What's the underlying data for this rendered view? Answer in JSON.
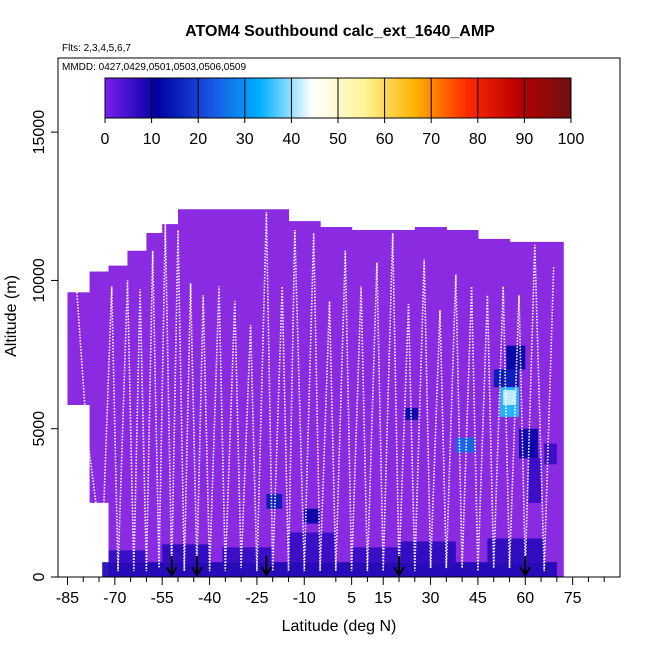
{
  "colors": {
    "background": "#8a2be2",
    "frame": "#000000",
    "flight_track": "#ffffff",
    "low_level": "#1010b0",
    "mid_level": "#2a2ad0",
    "hotspot": "#3aa8ff",
    "hotspot_light": "#8fd0ff"
  },
  "chart_data": {
    "type": "heatmap",
    "title": "ATOM4 Southbound calc_ext_1640_AMP",
    "subtitle_flights": "Flts: 2,3,4,5,6,7",
    "subtitle_dates": "MMDD: 0427,0429,0501,0503,0506,0509",
    "xlabel": "Latitude (deg N)",
    "ylabel": "Altitude (m)",
    "xlim": [
      -88,
      90
    ],
    "ylim": [
      0,
      17500
    ],
    "x_ticks": [
      -85,
      -70,
      -55,
      -40,
      -25,
      -10,
      5,
      15,
      30,
      45,
      60,
      75
    ],
    "x_minor_ticks": [
      -80,
      -75,
      -65,
      -60,
      -50,
      -45,
      -35,
      -30,
      -20,
      -15,
      0,
      10,
      20,
      25,
      35,
      40,
      50,
      55,
      65,
      70,
      80,
      85
    ],
    "y_ticks": [
      0,
      5000,
      10000,
      15000
    ],
    "colorbar": {
      "min": 0,
      "max": 100,
      "ticks": [
        0,
        10,
        20,
        30,
        40,
        50,
        60,
        70,
        80,
        90,
        100
      ],
      "stops": [
        "#7a1ff0",
        "#0000a0",
        "#1a4fe0",
        "#00b0ff",
        "#ffffff",
        "#fff59a",
        "#ffb000",
        "#ff2a00",
        "#b80000",
        "#6e1010"
      ]
    },
    "column_tops": [
      {
        "x0": -85,
        "x1": -78,
        "top": 9600
      },
      {
        "x0": -78,
        "x1": -72,
        "top": 10300
      },
      {
        "x0": -72,
        "x1": -66,
        "top": 10500
      },
      {
        "x0": -66,
        "x1": -60,
        "top": 11000
      },
      {
        "x0": -60,
        "x1": -55,
        "top": 11600
      },
      {
        "x0": -55,
        "x1": -50,
        "top": 11900
      },
      {
        "x0": -50,
        "x1": -44,
        "top": 12400
      },
      {
        "x0": -44,
        "x1": -35,
        "top": 12400
      },
      {
        "x0": -35,
        "x1": -25,
        "top": 12400
      },
      {
        "x0": -25,
        "x1": -15,
        "top": 12400
      },
      {
        "x0": -15,
        "x1": -5,
        "top": 12000
      },
      {
        "x0": -5,
        "x1": 5,
        "top": 11800
      },
      {
        "x0": 5,
        "x1": 15,
        "top": 11700
      },
      {
        "x0": 15,
        "x1": 25,
        "top": 11700
      },
      {
        "x0": 25,
        "x1": 35,
        "top": 11800
      },
      {
        "x0": 35,
        "x1": 45,
        "top": 11700
      },
      {
        "x0": 45,
        "x1": 55,
        "top": 11400
      },
      {
        "x0": 55,
        "x1": 65,
        "top": 11300
      },
      {
        "x0": 65,
        "x1": 72,
        "top": 11300
      }
    ],
    "column_bottoms": [
      {
        "x0": -85,
        "x1": -82,
        "bottom": 5800
      },
      {
        "x0": -82,
        "x1": -78,
        "bottom": 4500
      },
      {
        "x0": -78,
        "x1": -75,
        "bottom": 2500
      },
      {
        "x0": -75,
        "x1": 72,
        "bottom": 0
      }
    ],
    "cells": [
      {
        "x0": -74,
        "x1": 70,
        "y0": 0,
        "y1": 500,
        "value": 8
      },
      {
        "x0": -72,
        "x1": -60,
        "y0": 500,
        "y1": 900,
        "value": 6
      },
      {
        "x0": -55,
        "x1": -40,
        "y0": 500,
        "y1": 1100,
        "value": 7
      },
      {
        "x0": -36,
        "x1": -20,
        "y0": 500,
        "y1": 1000,
        "value": 6
      },
      {
        "x0": -15,
        "x1": 0,
        "y0": 500,
        "y1": 1500,
        "value": 6
      },
      {
        "x0": 5,
        "x1": 20,
        "y0": 500,
        "y1": 1000,
        "value": 6
      },
      {
        "x0": 20,
        "x1": 38,
        "y0": 500,
        "y1": 1200,
        "value": 7
      },
      {
        "x0": 48,
        "x1": 66,
        "y0": 500,
        "y1": 1300,
        "value": 7
      },
      {
        "x0": -22,
        "x1": -17,
        "y0": 2300,
        "y1": 2800,
        "value": 15
      },
      {
        "x0": -10,
        "x1": -5,
        "y0": 1800,
        "y1": 2300,
        "value": 10
      },
      {
        "x0": 22,
        "x1": 26,
        "y0": 5300,
        "y1": 5700,
        "value": 10
      },
      {
        "x0": 38,
        "x1": 44,
        "y0": 4200,
        "y1": 4700,
        "value": 25
      },
      {
        "x0": 50,
        "x1": 58,
        "y0": 6400,
        "y1": 7000,
        "value": 15
      },
      {
        "x0": 52,
        "x1": 58,
        "y0": 5400,
        "y1": 6400,
        "value": 35
      },
      {
        "x0": 53,
        "x1": 57,
        "y0": 5800,
        "y1": 6300,
        "value": 42
      },
      {
        "x0": 54,
        "x1": 60,
        "y0": 7000,
        "y1": 7800,
        "value": 12
      },
      {
        "x0": 58,
        "x1": 64,
        "y0": 4000,
        "y1": 5000,
        "value": 10
      },
      {
        "x0": 61,
        "x1": 65,
        "y0": 2500,
        "y1": 4000,
        "value": 6
      },
      {
        "x0": 66,
        "x1": 70,
        "y0": 3800,
        "y1": 4500,
        "value": 6
      }
    ],
    "flight_track": [
      [
        -82,
        9600
      ],
      [
        -79,
        5000
      ],
      [
        -76,
        2500
      ],
      [
        -74,
        900
      ],
      [
        -71,
        9800
      ],
      [
        -69,
        200
      ],
      [
        -66,
        10000
      ],
      [
        -64,
        200
      ],
      [
        -62,
        9700
      ],
      [
        -60,
        200
      ],
      [
        -58,
        11000
      ],
      [
        -56,
        300
      ],
      [
        -54,
        11900
      ],
      [
        -52,
        200
      ],
      [
        -50,
        11700
      ],
      [
        -48,
        200
      ],
      [
        -46,
        9900
      ],
      [
        -44,
        300
      ],
      [
        -42,
        9500
      ],
      [
        -40,
        200
      ],
      [
        -37,
        9800
      ],
      [
        -35,
        200
      ],
      [
        -32,
        9300
      ],
      [
        -30,
        300
      ],
      [
        -27,
        8500
      ],
      [
        -25,
        200
      ],
      [
        -22,
        12300
      ],
      [
        -20,
        200
      ],
      [
        -17,
        9800
      ],
      [
        -15,
        200
      ],
      [
        -13,
        11700
      ],
      [
        -10,
        200
      ],
      [
        -7,
        11600
      ],
      [
        -5,
        200
      ],
      [
        -2,
        9300
      ],
      [
        0,
        200
      ],
      [
        3,
        11000
      ],
      [
        5,
        200
      ],
      [
        8,
        9800
      ],
      [
        10,
        200
      ],
      [
        13,
        10600
      ],
      [
        15,
        200
      ],
      [
        18,
        11600
      ],
      [
        20,
        300
      ],
      [
        23,
        9200
      ],
      [
        25,
        200
      ],
      [
        28,
        10700
      ],
      [
        30,
        300
      ],
      [
        33,
        9000
      ],
      [
        35,
        300
      ],
      [
        38,
        10200
      ],
      [
        40,
        300
      ],
      [
        43,
        9800
      ],
      [
        45,
        200
      ],
      [
        48,
        9500
      ],
      [
        50,
        300
      ],
      [
        53,
        9800
      ],
      [
        55,
        300
      ],
      [
        58,
        9500
      ],
      [
        60,
        300
      ],
      [
        63,
        11200
      ],
      [
        66,
        200
      ],
      [
        69,
        10500
      ]
    ],
    "arrows_x": [
      -52,
      -44,
      -22,
      20,
      60
    ]
  }
}
